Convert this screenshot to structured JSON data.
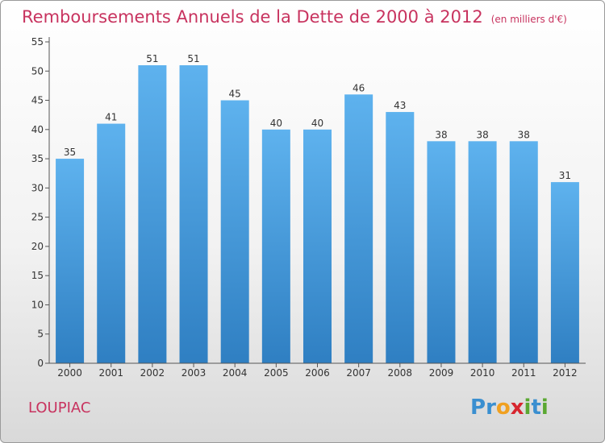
{
  "chart_data": {
    "type": "bar",
    "title": "Remboursements Annuels de la Dette de 2000 à 2012",
    "subtitle": "(en milliers d'€)",
    "categories": [
      "2000",
      "2001",
      "2002",
      "2003",
      "2004",
      "2005",
      "2006",
      "2007",
      "2008",
      "2009",
      "2010",
      "2011",
      "2012"
    ],
    "values": [
      35,
      41,
      51,
      51,
      45,
      40,
      40,
      46,
      43,
      38,
      38,
      38,
      31
    ],
    "xlabel": "",
    "ylabel": "",
    "ylim": [
      0,
      55
    ],
    "yticks": [
      0,
      5,
      10,
      15,
      20,
      25,
      30,
      35,
      40,
      45,
      50,
      55
    ],
    "grid": false,
    "bar_color": "#4a9fdf"
  },
  "footer": {
    "commune": "LOUPIAC",
    "logo_letters": [
      {
        "ch": "P",
        "color": "#3a8fd0"
      },
      {
        "ch": "r",
        "color": "#3a8fd0"
      },
      {
        "ch": "o",
        "color": "#f0a020"
      },
      {
        "ch": "x",
        "color": "#d7262f"
      },
      {
        "ch": "i",
        "color": "#5aa832"
      },
      {
        "ch": "t",
        "color": "#3a8fd0"
      },
      {
        "ch": "i",
        "color": "#5aa832"
      }
    ]
  }
}
